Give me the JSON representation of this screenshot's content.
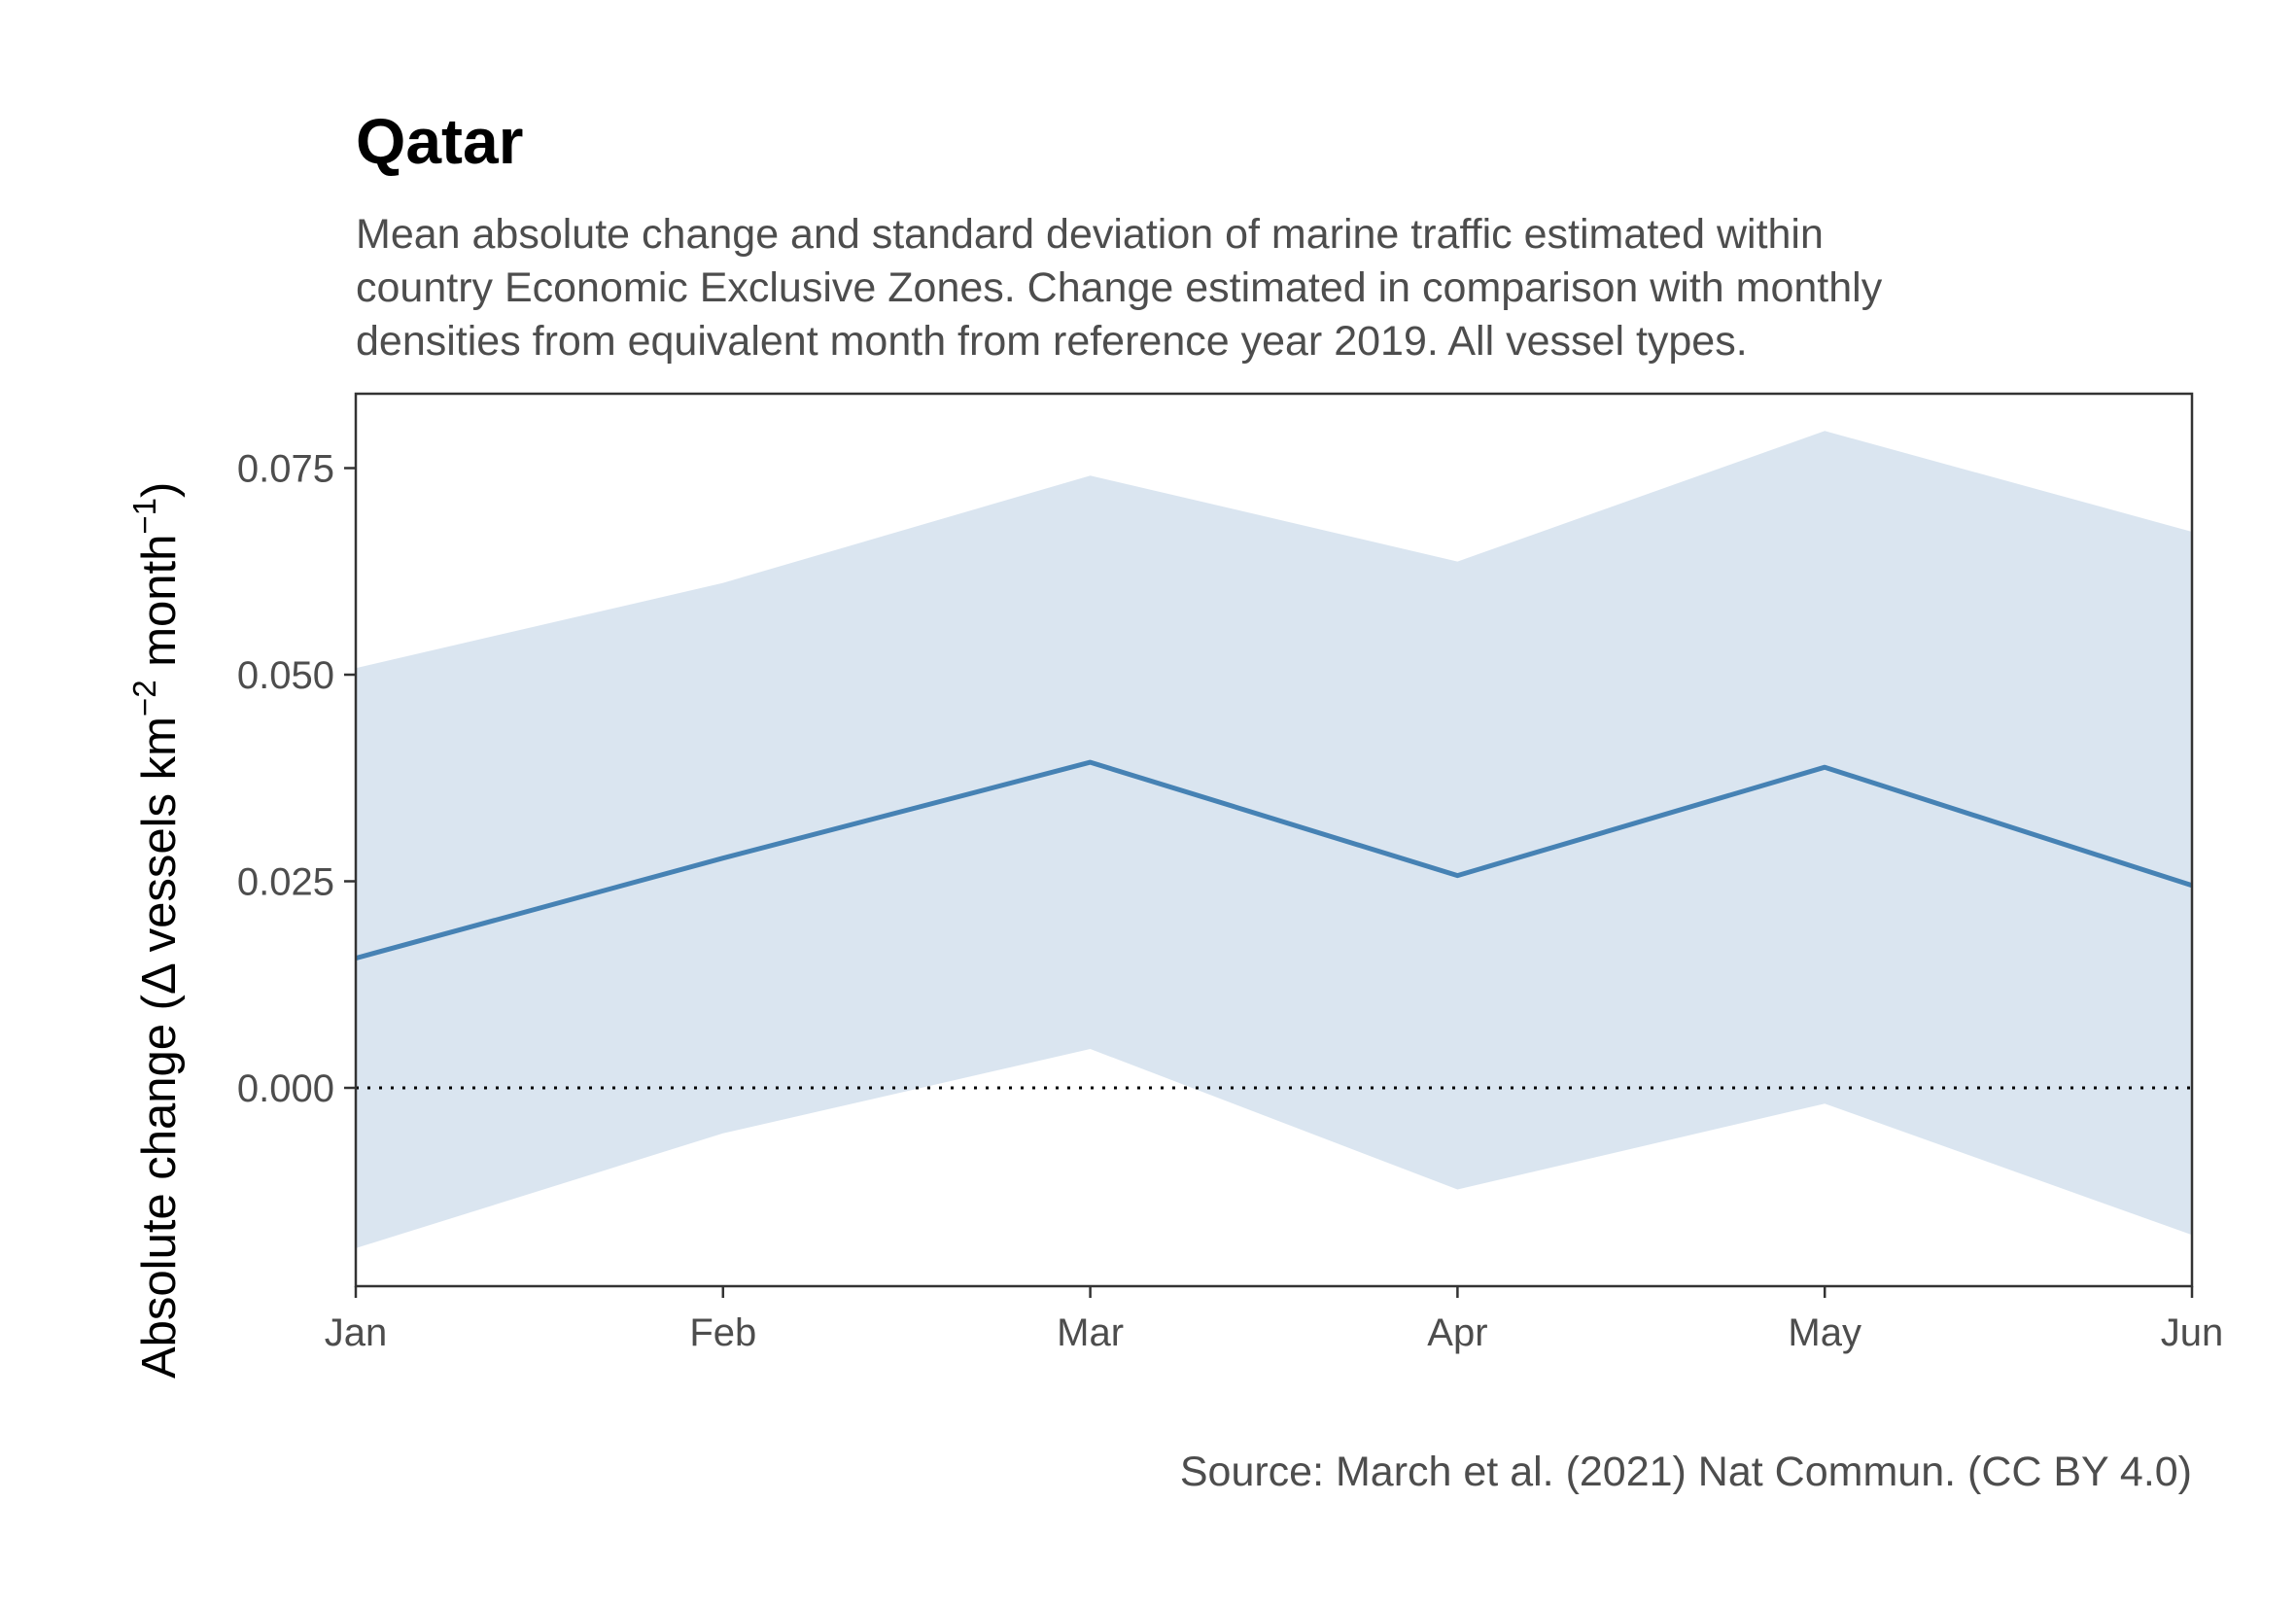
{
  "chart_data": {
    "type": "line",
    "title": "Qatar",
    "subtitle": [
      "Mean absolute change and standard deviation of marine traffic estimated within",
      "country Economic Exclusive Zones. Change estimated in comparison with monthly",
      "densities from equivalent month from reference year 2019. All vessel types."
    ],
    "ylabel": {
      "prefix": "Absolute change (",
      "delta": "Δ",
      "mid1": " vessels km",
      "sup1": "−2",
      "mid2": " month",
      "sup2": "−1",
      "suffix": ")"
    },
    "xlabel": "",
    "categories": [
      "Jan",
      "Feb",
      "Mar",
      "Apr",
      "May",
      "Jun"
    ],
    "series": [
      {
        "values": [
          0.0157,
          0.0278,
          0.0394,
          0.0257,
          0.0388,
          0.0245
        ],
        "lower": [
          -0.0194,
          -0.0055,
          0.0047,
          -0.0123,
          -0.0019,
          -0.0178
        ],
        "upper": [
          0.0508,
          0.0611,
          0.0741,
          0.0637,
          0.0795,
          0.0673
        ]
      }
    ],
    "yticks": [
      0.0,
      0.025,
      0.05,
      0.075
    ],
    "ytick_labels": [
      "0.000",
      "0.025",
      "0.050",
      "0.075"
    ],
    "ylim": [
      -0.024,
      0.084
    ],
    "reference_line": 0.0,
    "grid": false,
    "caption": "Source: March et al. (2021) Nat Commun. (CC BY 4.0)"
  },
  "colors": {
    "line": "#4682b4",
    "band": "#dae5f0",
    "axis": "#333333",
    "text": "#4d4d4d"
  }
}
